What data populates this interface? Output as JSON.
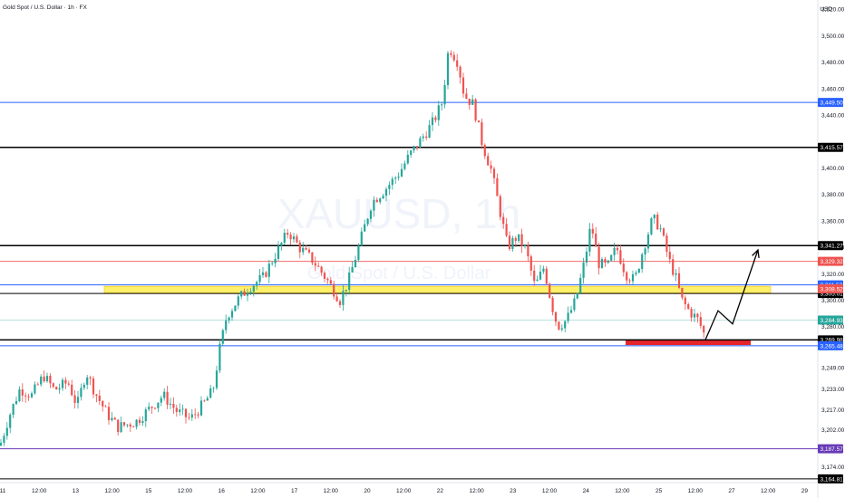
{
  "header": {
    "title": "Gold Spot / U.S. Dollar · 1h · FX",
    "currency": "USD"
  },
  "watermark": {
    "symbol": "XAUUSD, 1h",
    "name": "Gold Spot / U.S. Dollar"
  },
  "colors": {
    "up": "#26a69a",
    "down": "#ef5350",
    "zone": "#ffeb3b",
    "blue_line": "#2962ff",
    "purple_line": "#673ab7",
    "red_block": "#e5252a"
  },
  "chart_data": {
    "type": "candlestick",
    "symbol": "XAUUSD",
    "interval": "1h",
    "ylim": [
      3162,
      3527
    ],
    "y_ticks": [
      3520,
      3500,
      3480,
      3460,
      3440,
      3400,
      3380,
      3360,
      3340,
      3320,
      3300,
      3280,
      3249,
      3233,
      3217,
      3202,
      3174
    ],
    "x_tick_labels": [
      "11",
      "12:00",
      "13",
      "12:00",
      "15",
      "12:00",
      "16",
      "12:00",
      "17",
      "12:00",
      "20",
      "12:00",
      "22",
      "12:00",
      "23",
      "12:00",
      "24",
      "12:00",
      "25",
      "12:00",
      "27",
      "12:00",
      "29"
    ],
    "price_path": [
      [
        0,
        3190
      ],
      [
        10,
        3212
      ],
      [
        22,
        3233
      ],
      [
        35,
        3228
      ],
      [
        48,
        3243
      ],
      [
        60,
        3232
      ],
      [
        75,
        3238
      ],
      [
        85,
        3220
      ],
      [
        95,
        3246
      ],
      [
        105,
        3230
      ],
      [
        118,
        3214
      ],
      [
        130,
        3204
      ],
      [
        150,
        3208
      ],
      [
        165,
        3218
      ],
      [
        180,
        3228
      ],
      [
        195,
        3216
      ],
      [
        210,
        3210
      ],
      [
        225,
        3222
      ],
      [
        235,
        3232
      ],
      [
        242,
        3262
      ],
      [
        250,
        3288
      ],
      [
        262,
        3300
      ],
      [
        275,
        3310
      ],
      [
        290,
        3317
      ],
      [
        305,
        3336
      ],
      [
        318,
        3352
      ],
      [
        330,
        3340
      ],
      [
        345,
        3330
      ],
      [
        360,
        3316
      ],
      [
        375,
        3300
      ],
      [
        385,
        3316
      ],
      [
        398,
        3346
      ],
      [
        410,
        3374
      ],
      [
        425,
        3384
      ],
      [
        440,
        3396
      ],
      [
        452,
        3410
      ],
      [
        465,
        3422
      ],
      [
        478,
        3435
      ],
      [
        488,
        3450
      ],
      [
        495,
        3492
      ],
      [
        505,
        3480
      ],
      [
        512,
        3455
      ],
      [
        522,
        3448
      ],
      [
        532,
        3418
      ],
      [
        542,
        3398
      ],
      [
        550,
        3372
      ],
      [
        560,
        3340
      ],
      [
        570,
        3348
      ],
      [
        580,
        3338
      ],
      [
        590,
        3310
      ],
      [
        600,
        3325
      ],
      [
        608,
        3298
      ],
      [
        615,
        3280
      ],
      [
        625,
        3285
      ],
      [
        635,
        3300
      ],
      [
        645,
        3330
      ],
      [
        652,
        3358
      ],
      [
        660,
        3328
      ],
      [
        670,
        3325
      ],
      [
        680,
        3340
      ],
      [
        690,
        3320
      ],
      [
        700,
        3315
      ],
      [
        710,
        3340
      ],
      [
        720,
        3362
      ],
      [
        728,
        3355
      ],
      [
        738,
        3330
      ],
      [
        745,
        3318
      ],
      [
        752,
        3300
      ],
      [
        760,
        3292
      ],
      [
        770,
        3285
      ],
      [
        778,
        3272
      ]
    ],
    "projection": [
      [
        778,
        3270
      ],
      [
        792,
        3292
      ],
      [
        808,
        3282
      ],
      [
        836,
        3338
      ]
    ],
    "levels": [
      {
        "price": 3449.5,
        "label": "3,449.50",
        "color": "#2962ff",
        "width": 1
      },
      {
        "price": 3415.57,
        "label": "3,415.57",
        "color": "#000000",
        "width": 1.5
      },
      {
        "price": 3341.27,
        "label": "3,341.27",
        "color": "#000000",
        "width": 1.5
      },
      {
        "price": 3329.32,
        "label": "3,329.32",
        "color": "#ef5350",
        "width": 0.8
      },
      {
        "price": 3311.53,
        "label": "3,311.53",
        "color": "#2962ff",
        "width": 1
      },
      {
        "price": 3305.01,
        "label": "3,305.01",
        "color": "#000000",
        "width": 1
      },
      {
        "price": 3284.93,
        "label": "3,284.93",
        "color": "#7bc7c0",
        "width": 0.6
      },
      {
        "price": 3269.98,
        "label": "3,269.98",
        "color": "#000000",
        "width": 1.5
      },
      {
        "price": 3265.48,
        "label": "3,265.48",
        "color": "#2962ff",
        "width": 1
      },
      {
        "price": 3187.57,
        "label": "3,187.57",
        "color": "#673ab7",
        "width": 1
      },
      {
        "price": 3164.81,
        "label": "3,164.81",
        "color": "#000000",
        "width": 1
      }
    ],
    "price_tags": [
      {
        "price": 3308.52,
        "label": "3,308.52",
        "color": "#ef5350"
      },
      {
        "price": 3284.93,
        "label": "3,284.93",
        "color": "#26a69a"
      }
    ],
    "zone": {
      "x0": 115,
      "x1": 850,
      "top": 3310.5,
      "bottom": 3305.5
    },
    "red_block": {
      "x0": 690,
      "x1": 828,
      "top": 3269.5,
      "bottom": 3266
    }
  }
}
